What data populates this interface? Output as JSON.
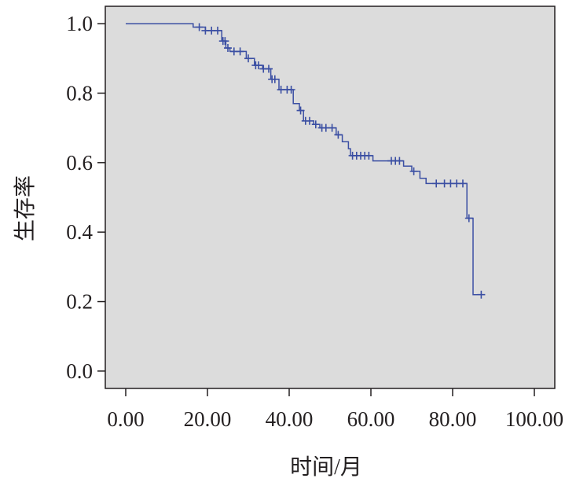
{
  "colors": {
    "plot_background": "#dcdcdc",
    "curve": "#3b4fa3",
    "axis": "#231f20",
    "page_background": "#ffffff"
  },
  "chart_data": {
    "type": "line",
    "subtype": "kaplan-meier-step",
    "title": "",
    "xlabel": "时间/月",
    "ylabel": "生存率",
    "xlim": [
      -5,
      105
    ],
    "ylim": [
      -0.05,
      1.05
    ],
    "xticks": [
      0,
      20,
      40,
      60,
      80,
      100
    ],
    "xtick_labels": [
      "0.00",
      "20.00",
      "40.00",
      "60.00",
      "80.00",
      "100.00"
    ],
    "yticks": [
      0.0,
      0.2,
      0.4,
      0.6,
      0.8,
      1.0
    ],
    "ytick_labels": [
      "0.0",
      "0.2",
      "0.4",
      "0.6",
      "0.8",
      "1.0"
    ],
    "grid": false,
    "legend": "none",
    "series": [
      {
        "steps": [
          [
            0.0,
            1.0
          ],
          [
            16.5,
            0.99
          ],
          [
            19.5,
            0.98
          ],
          [
            23.5,
            0.95
          ],
          [
            24.5,
            0.93
          ],
          [
            25.5,
            0.92
          ],
          [
            29.5,
            0.9
          ],
          [
            31.5,
            0.88
          ],
          [
            33.5,
            0.87
          ],
          [
            35.5,
            0.84
          ],
          [
            37.5,
            0.81
          ],
          [
            41.0,
            0.77
          ],
          [
            42.5,
            0.75
          ],
          [
            43.5,
            0.72
          ],
          [
            46.0,
            0.71
          ],
          [
            47.5,
            0.7
          ],
          [
            51.5,
            0.68
          ],
          [
            53.0,
            0.66
          ],
          [
            54.5,
            0.64
          ],
          [
            55.0,
            0.62
          ],
          [
            60.5,
            0.605
          ],
          [
            68.0,
            0.59
          ],
          [
            70.0,
            0.575
          ],
          [
            72.0,
            0.555
          ],
          [
            73.5,
            0.54
          ],
          [
            83.5,
            0.44
          ],
          [
            85.0,
            0.22
          ]
        ],
        "end_x": 87.0,
        "censored": [
          [
            18.0,
            0.99
          ],
          [
            19.5,
            0.98
          ],
          [
            21.0,
            0.98
          ],
          [
            22.5,
            0.98
          ],
          [
            23.8,
            0.95
          ],
          [
            24.3,
            0.95
          ],
          [
            25.0,
            0.93
          ],
          [
            26.5,
            0.92
          ],
          [
            28.0,
            0.92
          ],
          [
            30.0,
            0.9
          ],
          [
            31.8,
            0.88
          ],
          [
            32.5,
            0.88
          ],
          [
            33.7,
            0.87
          ],
          [
            35.0,
            0.87
          ],
          [
            35.8,
            0.84
          ],
          [
            36.5,
            0.84
          ],
          [
            38.0,
            0.81
          ],
          [
            39.5,
            0.81
          ],
          [
            40.5,
            0.81
          ],
          [
            42.8,
            0.75
          ],
          [
            44.0,
            0.72
          ],
          [
            45.0,
            0.72
          ],
          [
            46.5,
            0.71
          ],
          [
            48.0,
            0.7
          ],
          [
            49.0,
            0.7
          ],
          [
            50.5,
            0.7
          ],
          [
            52.0,
            0.68
          ],
          [
            55.5,
            0.62
          ],
          [
            56.5,
            0.62
          ],
          [
            57.5,
            0.62
          ],
          [
            58.5,
            0.62
          ],
          [
            59.5,
            0.62
          ],
          [
            65.0,
            0.605
          ],
          [
            66.0,
            0.605
          ],
          [
            67.0,
            0.605
          ],
          [
            70.5,
            0.575
          ],
          [
            76.0,
            0.54
          ],
          [
            78.0,
            0.54
          ],
          [
            79.5,
            0.54
          ],
          [
            81.0,
            0.54
          ],
          [
            82.5,
            0.54
          ],
          [
            84.0,
            0.44
          ],
          [
            87.0,
            0.22
          ]
        ]
      }
    ]
  }
}
